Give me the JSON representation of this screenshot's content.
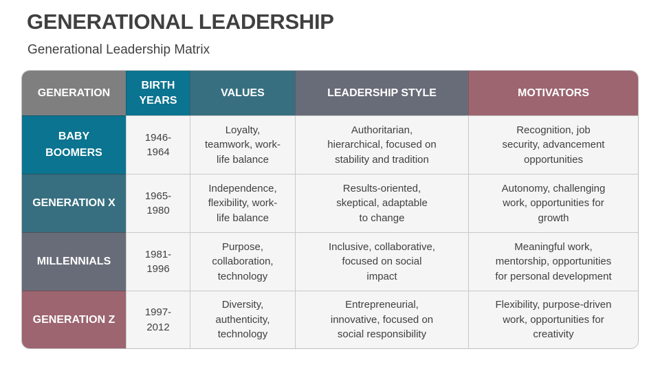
{
  "header": {
    "title": "GENERATIONAL LEADERSHIP",
    "subtitle": "Generational Leadership Matrix"
  },
  "colors": {
    "gray": "#7f7f7f",
    "teal": "#0b7490",
    "slate_teal": "#376f80",
    "slate": "#686c78",
    "rose": "#9c6570",
    "cell_bg": "#f5f5f5",
    "grid_line": "#c8c8c8",
    "text": "#404040"
  },
  "matrix": {
    "columns": [
      {
        "label": "GENERATION",
        "color": "#7f7f7f"
      },
      {
        "label": "BIRTH\nYEARS",
        "color": "#0b7490"
      },
      {
        "label": "VALUES",
        "color": "#376f80"
      },
      {
        "label": "LEADERSHIP STYLE",
        "color": "#686c78"
      },
      {
        "label": "MOTIVATORS",
        "color": "#9c6570"
      }
    ],
    "rows": [
      {
        "generation": "BABY\nBOOMERS",
        "color": "#0b7490",
        "birth_years": "1946-\n1964",
        "values": "Loyalty,\nteamwork, work-\nlife balance",
        "leadership_style": "Authoritarian,\nhierarchical, focused on\nstability and tradition",
        "motivators": "Recognition, job\nsecurity, advancement\nopportunities"
      },
      {
        "generation": "GENERATION X",
        "color": "#376f80",
        "birth_years": "1965-\n1980",
        "values": "Independence,\nflexibility, work-\nlife balance",
        "leadership_style": "Results-oriented,\nskeptical, adaptable\nto change",
        "motivators": "Autonomy, challenging\nwork, opportunities for\ngrowth"
      },
      {
        "generation": "MILLENNIALS",
        "color": "#686c78",
        "birth_years": "1981-\n1996",
        "values": "Purpose,\ncollaboration,\ntechnology",
        "leadership_style": "Inclusive, collaborative,\nfocused on social\nimpact",
        "motivators": "Meaningful work,\nmentorship, opportunities\nfor personal development"
      },
      {
        "generation": "GENERATION Z",
        "color": "#9c6570",
        "birth_years": "1997-\n2012",
        "values": "Diversity,\nauthenticity,\ntechnology",
        "leadership_style": "Entrepreneurial,\ninnovative, focused on\nsocial responsibility",
        "motivators": "Flexibility, purpose-driven\nwork, opportunities for\ncreativity"
      }
    ]
  }
}
